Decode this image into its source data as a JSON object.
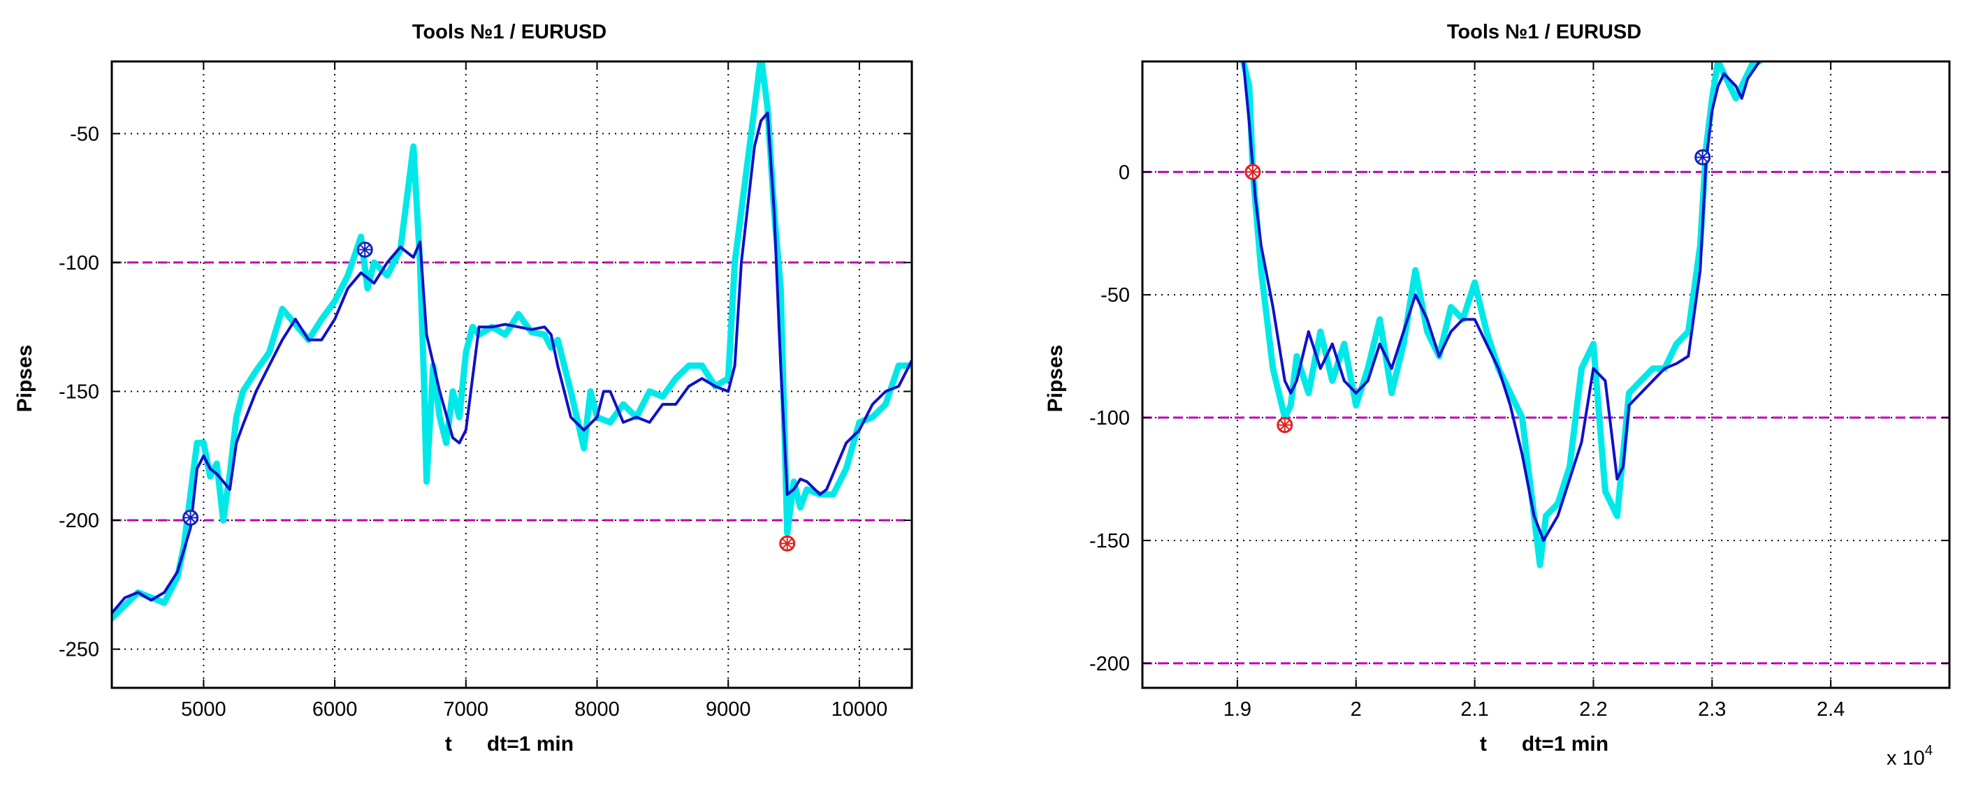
{
  "chart_data": [
    {
      "type": "line",
      "title": "Tools  №1 / EURUSD",
      "xlabel": "t      dt=1 min",
      "ylabel": "Pipses",
      "xlim": [
        4300,
        10400
      ],
      "ylim": [
        -265,
        -22
      ],
      "xticks": [
        5000,
        6000,
        7000,
        8000,
        9000,
        10000
      ],
      "xtick_labels": [
        "5000",
        "6000",
        "7000",
        "8000",
        "9000",
        "10000"
      ],
      "yticks": [
        -250,
        -200,
        -150,
        -100,
        -50
      ],
      "ytick_labels": [
        "-250",
        "-200",
        "-150",
        "-100",
        "-50"
      ],
      "grid": true,
      "colors": {
        "raw": "#00e8e8",
        "smooth": "#1010c8",
        "level": "#c000c0",
        "marker_blue": "#1020c0",
        "marker_red": "#e02020"
      },
      "hlines": [
        -100,
        -200
      ],
      "markers": [
        {
          "x": 4900,
          "y": -199,
          "color": "marker_blue"
        },
        {
          "x": 6230,
          "y": -95,
          "color": "marker_blue"
        },
        {
          "x": 9450,
          "y": -209,
          "color": "marker_red"
        }
      ],
      "series": [
        {
          "role": "raw",
          "x": [
            4300,
            4400,
            4500,
            4600,
            4700,
            4800,
            4850,
            4900,
            4950,
            5000,
            5050,
            5100,
            5150,
            5200,
            5250,
            5300,
            5400,
            5500,
            5600,
            5700,
            5800,
            5900,
            6000,
            6100,
            6200,
            6250,
            6300,
            6400,
            6500,
            6600,
            6650,
            6680,
            6700,
            6750,
            6800,
            6850,
            6900,
            6950,
            7000,
            7050,
            7100,
            7200,
            7300,
            7400,
            7500,
            7600,
            7650,
            7700,
            7800,
            7900,
            7950,
            8000,
            8100,
            8200,
            8300,
            8400,
            8500,
            8600,
            8700,
            8800,
            8900,
            9000,
            9050,
            9100,
            9150,
            9200,
            9250,
            9300,
            9350,
            9400,
            9450,
            9500,
            9550,
            9600,
            9700,
            9800,
            9900,
            10000,
            10100,
            10200,
            10300,
            10400
          ],
          "y": [
            -238,
            -233,
            -228,
            -230,
            -232,
            -222,
            -210,
            -190,
            -170,
            -170,
            -183,
            -178,
            -200,
            -182,
            -160,
            -150,
            -142,
            -135,
            -118,
            -124,
            -130,
            -122,
            -115,
            -105,
            -90,
            -110,
            -100,
            -105,
            -95,
            -55,
            -100,
            -145,
            -185,
            -140,
            -160,
            -170,
            -150,
            -160,
            -135,
            -125,
            -128,
            -125,
            -128,
            -120,
            -127,
            -128,
            -133,
            -130,
            -150,
            -172,
            -150,
            -160,
            -162,
            -155,
            -160,
            -150,
            -152,
            -145,
            -140,
            -140,
            -148,
            -145,
            -100,
            -80,
            -60,
            -40,
            -20,
            -40,
            -80,
            -110,
            -205,
            -185,
            -195,
            -188,
            -190,
            -190,
            -180,
            -162,
            -160,
            -155,
            -140,
            -140
          ]
        },
        {
          "role": "smooth",
          "x": [
            4300,
            4400,
            4500,
            4600,
            4700,
            4800,
            4900,
            4950,
            5000,
            5050,
            5100,
            5200,
            5250,
            5300,
            5400,
            5500,
            5600,
            5700,
            5800,
            5900,
            6000,
            6100,
            6200,
            6300,
            6400,
            6500,
            6600,
            6650,
            6700,
            6800,
            6900,
            6950,
            7000,
            7100,
            7200,
            7300,
            7400,
            7500,
            7600,
            7650,
            7700,
            7800,
            7900,
            8000,
            8050,
            8100,
            8200,
            8300,
            8400,
            8500,
            8600,
            8700,
            8800,
            8900,
            9000,
            9050,
            9100,
            9200,
            9250,
            9300,
            9350,
            9400,
            9450,
            9500,
            9550,
            9600,
            9700,
            9750,
            9800,
            9900,
            10000,
            10100,
            10200,
            10300,
            10400
          ],
          "y": [
            -236,
            -230,
            -228,
            -231,
            -228,
            -220,
            -203,
            -180,
            -175,
            -180,
            -182,
            -188,
            -170,
            -163,
            -150,
            -140,
            -130,
            -122,
            -130,
            -130,
            -122,
            -110,
            -104,
            -108,
            -100,
            -94,
            -98,
            -92,
            -128,
            -150,
            -168,
            -170,
            -165,
            -125,
            -125,
            -124,
            -125,
            -126,
            -125,
            -128,
            -140,
            -160,
            -165,
            -160,
            -150,
            -150,
            -162,
            -160,
            -162,
            -155,
            -155,
            -148,
            -145,
            -148,
            -150,
            -140,
            -100,
            -55,
            -45,
            -42,
            -80,
            -140,
            -190,
            -188,
            -184,
            -185,
            -190,
            -188,
            -182,
            -170,
            -165,
            -155,
            -150,
            -148,
            -138
          ]
        }
      ]
    },
    {
      "type": "line",
      "title": "Tools  №1 / EURUSD",
      "xlabel": "t      dt=1 min",
      "ylabel": "Pipses",
      "xlim": [
        18200,
        25000
      ],
      "ylim": [
        -210,
        45
      ],
      "xticks": [
        19000,
        20000,
        21000,
        22000,
        23000,
        24000
      ],
      "xtick_labels": [
        "1.9",
        "2",
        "2.1",
        "2.2",
        "2.3",
        "2.4"
      ],
      "x_multiplier_base": "x 10",
      "x_multiplier_exp": "4",
      "yticks": [
        -200,
        -150,
        -100,
        -50,
        0
      ],
      "ytick_labels": [
        "-200",
        "-150",
        "-100",
        "-50",
        "0"
      ],
      "grid": true,
      "colors": {
        "raw": "#00e8e8",
        "smooth": "#1010c8",
        "level": "#c000c0",
        "marker_blue": "#1020c0",
        "marker_red": "#e02020"
      },
      "hlines": [
        0,
        -100,
        -200
      ],
      "markers": [
        {
          "x": 19130,
          "y": 0,
          "color": "marker_red"
        },
        {
          "x": 19400,
          "y": -103,
          "color": "marker_red"
        },
        {
          "x": 22920,
          "y": 6,
          "color": "marker_blue"
        }
      ],
      "series": [
        {
          "role": "raw",
          "x": [
            19050,
            19100,
            19130,
            19200,
            19300,
            19400,
            19450,
            19500,
            19600,
            19700,
            19800,
            19900,
            20000,
            20100,
            20200,
            20300,
            20400,
            20500,
            20600,
            20700,
            20800,
            20900,
            21000,
            21100,
            21200,
            21300,
            21400,
            21500,
            21550,
            21600,
            21700,
            21800,
            21900,
            22000,
            22100,
            22200,
            22300,
            22400,
            22500,
            22600,
            22700,
            22800,
            22900,
            22950,
            23000,
            23050,
            23100,
            23200,
            23300,
            23350,
            23400
          ],
          "y": [
            45,
            35,
            0,
            -40,
            -80,
            -100,
            -95,
            -75,
            -90,
            -65,
            -85,
            -70,
            -95,
            -80,
            -60,
            -90,
            -70,
            -40,
            -65,
            -75,
            -55,
            -60,
            -45,
            -65,
            -80,
            -90,
            -100,
            -140,
            -160,
            -140,
            -135,
            -120,
            -80,
            -70,
            -130,
            -140,
            -90,
            -85,
            -80,
            -80,
            -70,
            -65,
            -30,
            10,
            30,
            45,
            40,
            30,
            40,
            45,
            45
          ]
        },
        {
          "role": "smooth",
          "x": [
            19050,
            19100,
            19150,
            19200,
            19300,
            19400,
            19450,
            19500,
            19600,
            19700,
            19800,
            19900,
            20000,
            20100,
            20200,
            20300,
            20400,
            20500,
            20600,
            20700,
            20800,
            20900,
            21000,
            21100,
            21200,
            21300,
            21400,
            21500,
            21580,
            21700,
            21800,
            21900,
            22000,
            22100,
            22200,
            22250,
            22300,
            22400,
            22500,
            22600,
            22700,
            22800,
            22900,
            22950,
            23000,
            23050,
            23100,
            23200,
            23250,
            23300,
            23400
          ],
          "y": [
            45,
            20,
            -10,
            -30,
            -55,
            -85,
            -90,
            -85,
            -65,
            -80,
            -70,
            -85,
            -90,
            -85,
            -70,
            -80,
            -65,
            -50,
            -60,
            -75,
            -65,
            -60,
            -60,
            -70,
            -80,
            -95,
            -115,
            -140,
            -150,
            -140,
            -125,
            -110,
            -80,
            -85,
            -125,
            -120,
            -95,
            -90,
            -85,
            -80,
            -78,
            -75,
            -40,
            5,
            25,
            35,
            40,
            35,
            30,
            38,
            45
          ]
        }
      ]
    }
  ]
}
